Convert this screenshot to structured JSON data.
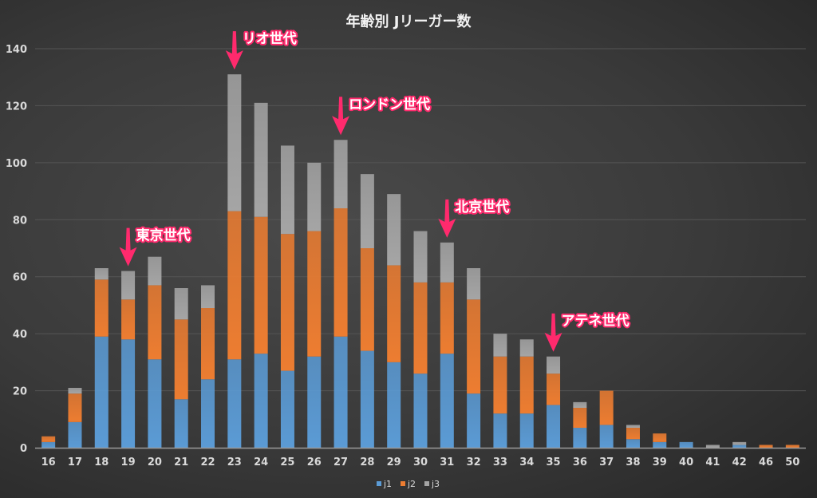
{
  "chart_data": {
    "type": "bar",
    "stacked": true,
    "title": "年齢別 Jリーガー数",
    "xlabel": "",
    "ylabel": "",
    "ylim": [
      0,
      140
    ],
    "yticks": [
      0,
      20,
      40,
      60,
      80,
      100,
      120,
      140
    ],
    "grid": true,
    "legend": "bottom",
    "categories": [
      "16",
      "17",
      "18",
      "19",
      "20",
      "21",
      "22",
      "23",
      "24",
      "25",
      "26",
      "27",
      "28",
      "29",
      "30",
      "31",
      "32",
      "33",
      "34",
      "35",
      "36",
      "37",
      "38",
      "39",
      "40",
      "41",
      "42",
      "46",
      "50"
    ],
    "series": [
      {
        "name": "j1",
        "color": "#5b9bd5",
        "values": [
          2,
          9,
          39,
          38,
          31,
          17,
          24,
          31,
          33,
          27,
          32,
          39,
          34,
          30,
          26,
          33,
          19,
          12,
          12,
          15,
          7,
          8,
          3,
          2,
          2,
          0,
          1,
          0,
          0
        ]
      },
      {
        "name": "j2",
        "color": "#ed7d31",
        "values": [
          2,
          10,
          20,
          14,
          26,
          28,
          25,
          52,
          48,
          48,
          44,
          45,
          36,
          34,
          32,
          25,
          33,
          20,
          20,
          11,
          7,
          12,
          4,
          3,
          0,
          0,
          0,
          1,
          1
        ]
      },
      {
        "name": "j3",
        "color": "#a5a5a5",
        "values": [
          0,
          2,
          4,
          10,
          10,
          11,
          8,
          48,
          40,
          31,
          24,
          24,
          26,
          25,
          18,
          14,
          11,
          8,
          6,
          6,
          2,
          0,
          1,
          0,
          0,
          1,
          1,
          0,
          0
        ]
      }
    ],
    "annotations": [
      {
        "category": "19",
        "text": "東京世代"
      },
      {
        "category": "23",
        "text": "リオ世代"
      },
      {
        "category": "27",
        "text": "ロンドン世代"
      },
      {
        "category": "31",
        "text": "北京世代"
      },
      {
        "category": "35",
        "text": "アテネ世代"
      }
    ],
    "annotation_color": "#ff2a6d"
  }
}
